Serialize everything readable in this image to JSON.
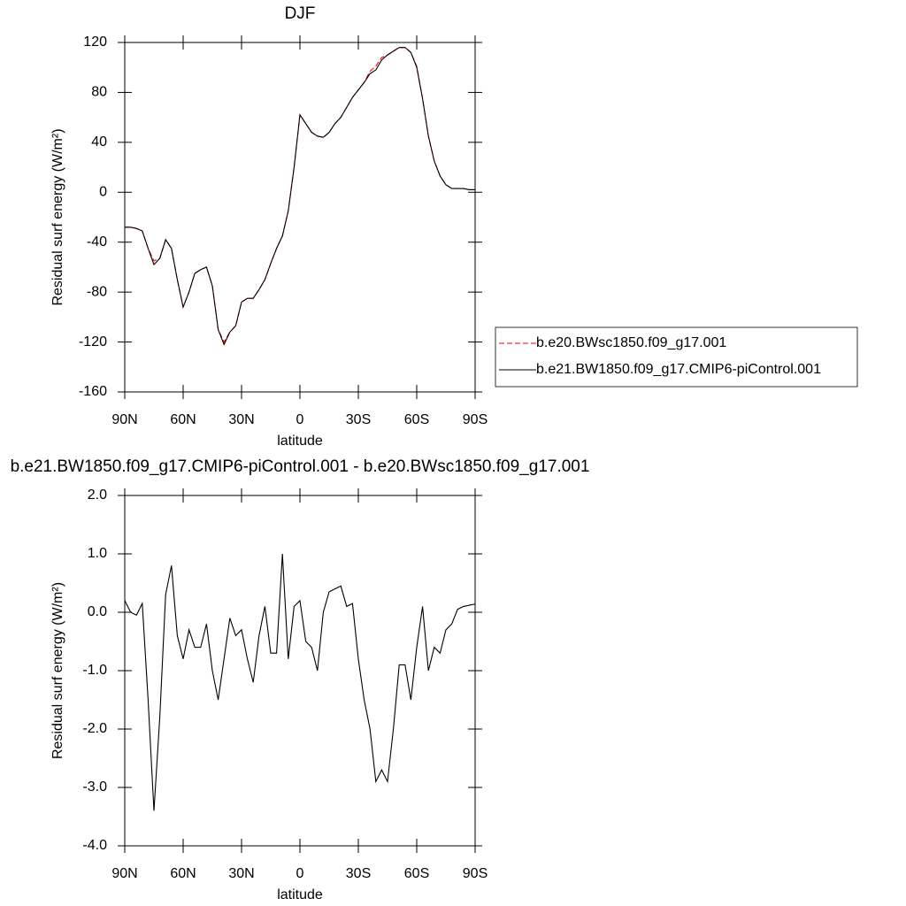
{
  "chart_data": [
    {
      "type": "line",
      "title": "DJF",
      "x_label": "latitude",
      "y_label": "Residual surf energy (W/m²)",
      "x": [
        90,
        87,
        84,
        81,
        78,
        75,
        72,
        69,
        66,
        63,
        60,
        57,
        54,
        51,
        48,
        45,
        42,
        39,
        36,
        33,
        30,
        27,
        24,
        21,
        18,
        15,
        12,
        9,
        6,
        3,
        0,
        -3,
        -6,
        -9,
        -12,
        -15,
        -18,
        -21,
        -24,
        -27,
        -30,
        -33,
        -36,
        -39,
        -42,
        -45,
        -48,
        -51,
        -54,
        -57,
        -60,
        -63,
        -66,
        -69,
        -72,
        -75,
        -78,
        -81,
        -84,
        -87,
        -90
      ],
      "xlim": [
        90,
        -90
      ],
      "xticks": [
        {
          "value": 90,
          "label": "90N"
        },
        {
          "value": 60,
          "label": "60N"
        },
        {
          "value": 30,
          "label": "30N"
        },
        0,
        {
          "value": -30,
          "label": "30S"
        },
        {
          "value": -60,
          "label": "60S"
        },
        {
          "value": -90,
          "label": "90S"
        }
      ],
      "ylim": [
        -160,
        120
      ],
      "yticks": [
        120,
        80,
        40,
        0,
        -40,
        -80,
        -120,
        -160
      ],
      "legend": "right",
      "series": [
        {
          "name": "b.e20.BWsc1850.f09_g17.001",
          "color": "#ff0000",
          "line_style": "dashed",
          "values": [
            -28,
            -28,
            -29,
            -31,
            -45,
            -55,
            -53,
            -38,
            -45,
            -70,
            -92,
            -80,
            -65,
            -62,
            -60,
            -75,
            -110,
            -120,
            -112,
            -107,
            -88,
            -85,
            -85,
            -78,
            -70,
            -57,
            -45,
            -35,
            -15,
            20,
            62,
            55,
            48,
            45,
            44,
            48,
            55,
            60,
            68,
            76,
            82,
            88,
            97,
            101,
            108,
            110,
            113,
            116,
            116,
            112,
            101,
            75,
            45,
            25,
            13,
            6,
            3,
            3,
            3,
            2,
            2
          ]
        },
        {
          "name": "b.e21.BW1850.f09_g17.CMIP6-piControl.001",
          "color": "#000000",
          "line_style": "solid",
          "values": [
            -28,
            -28,
            -29,
            -31,
            -45,
            -58,
            -53,
            -38,
            -45,
            -70,
            -92,
            -80,
            -65,
            -62,
            -60,
            -75,
            -110,
            -122,
            -112,
            -107,
            -88,
            -85,
            -85,
            -78,
            -70,
            -57,
            -45,
            -35,
            -15,
            20,
            62,
            55,
            48,
            45,
            44,
            48,
            55,
            60,
            68,
            76,
            82,
            88,
            95,
            98,
            106,
            110,
            113,
            116,
            116,
            112,
            100,
            75,
            45,
            25,
            13,
            6,
            3,
            3,
            3,
            2,
            2
          ]
        }
      ]
    },
    {
      "type": "line",
      "title": "b.e21.BW1850.f09_g17.CMIP6-piControl.001 - b.e20.BWsc1850.f09_g17.001",
      "x_label": "latitude",
      "y_label": "Residual surf energy (W/m²)",
      "x": [
        90,
        87,
        84,
        81,
        78,
        75,
        72,
        69,
        66,
        63,
        60,
        57,
        54,
        51,
        48,
        45,
        42,
        39,
        36,
        33,
        30,
        27,
        24,
        21,
        18,
        15,
        12,
        9,
        6,
        3,
        0,
        -3,
        -6,
        -9,
        -12,
        -15,
        -18,
        -21,
        -24,
        -27,
        -30,
        -33,
        -36,
        -39,
        -42,
        -45,
        -48,
        -51,
        -54,
        -57,
        -60,
        -63,
        -66,
        -69,
        -72,
        -75,
        -78,
        -81,
        -84,
        -87,
        -90
      ],
      "xlim": [
        90,
        -90
      ],
      "xticks": [
        {
          "value": 90,
          "label": "90N"
        },
        {
          "value": 60,
          "label": "60N"
        },
        {
          "value": 30,
          "label": "30N"
        },
        0,
        {
          "value": -30,
          "label": "30S"
        },
        {
          "value": -60,
          "label": "60S"
        },
        {
          "value": -90,
          "label": "90S"
        }
      ],
      "ylim": [
        -4,
        2
      ],
      "yticks": [
        {
          "value": 2,
          "label": "2.0"
        },
        {
          "value": 1,
          "label": "1.0"
        },
        {
          "value": 0,
          "label": "0.0"
        },
        {
          "value": -1,
          "label": "-1.0"
        },
        {
          "value": -2,
          "label": "-2.0"
        },
        {
          "value": -3,
          "label": "-3.0"
        },
        {
          "value": -4,
          "label": "-4.0"
        }
      ],
      "color": "#000000",
      "values": [
        0.2,
        0.0,
        -0.05,
        0.15,
        -1.5,
        -3.4,
        -1.8,
        0.3,
        0.8,
        -0.4,
        -0.8,
        -0.3,
        -0.6,
        -0.6,
        -0.2,
        -1.0,
        -1.5,
        -0.8,
        -0.1,
        -0.4,
        -0.3,
        -0.8,
        -1.2,
        -0.4,
        0.1,
        -0.7,
        -0.7,
        1.0,
        -0.8,
        0.1,
        0.2,
        -0.5,
        -0.6,
        -1.0,
        0.0,
        0.35,
        0.4,
        0.45,
        0.1,
        0.15,
        -0.8,
        -1.5,
        -2.0,
        -2.9,
        -2.7,
        -2.9,
        -2.0,
        -0.9,
        -0.9,
        -1.5,
        -0.6,
        0.1,
        -1.0,
        -0.6,
        -0.7,
        -0.3,
        -0.2,
        0.05,
        0.1,
        0.12,
        0.14
      ]
    }
  ]
}
